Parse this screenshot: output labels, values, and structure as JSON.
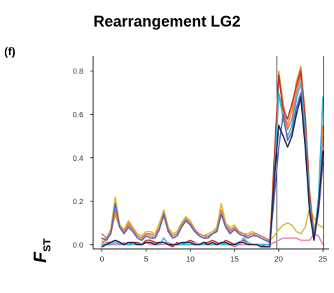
{
  "title": "Rearrangement LG2",
  "panel_label": "(f)",
  "ylabel": {
    "main": "F",
    "sub": "ST"
  },
  "chart_data": {
    "type": "line",
    "title": "Rearrangement LG2",
    "xlabel": "",
    "ylabel": "FST",
    "xlim": [
      -1,
      25.7
    ],
    "ylim": [
      -0.02,
      0.87
    ],
    "xticks": [
      0,
      5,
      10,
      15,
      20,
      25
    ],
    "yticks": [
      0.0,
      0.2,
      0.4,
      0.6,
      0.8
    ],
    "yticklabels": [
      "0.0",
      "0.2",
      "0.4",
      "0.6",
      "0.8"
    ],
    "vlines": [
      19.8,
      25.1
    ],
    "x": [
      0,
      0.5,
      1,
      1.5,
      2,
      2.5,
      3,
      3.5,
      4,
      4.5,
      5,
      5.5,
      6,
      6.5,
      7,
      7.5,
      8,
      8.5,
      9,
      9.5,
      10,
      10.5,
      11,
      11.5,
      12,
      12.5,
      13,
      13.5,
      14,
      14.5,
      15,
      15.5,
      16,
      16.5,
      17,
      17.5,
      18,
      18.5,
      19,
      19.5,
      20,
      20.5,
      21,
      21.5,
      22,
      22.5,
      23,
      23.5,
      24,
      24.5,
      25
    ],
    "series": [
      {
        "color": "#d7c03a",
        "values": [
          0.02,
          0.03,
          0.07,
          0.22,
          0.09,
          0.07,
          0.11,
          0.08,
          0.05,
          0.04,
          0.06,
          0.06,
          0.05,
          0.1,
          0.16,
          0.08,
          0.05,
          0.06,
          0.1,
          0.13,
          0.11,
          0.07,
          0.05,
          0.04,
          0.05,
          0.06,
          0.08,
          0.19,
          0.1,
          0.08,
          0.09,
          0.06,
          0.05,
          0.05,
          0.06,
          0.05,
          0.04,
          0.03,
          0.02,
          0.04,
          0.07,
          0.09,
          0.1,
          0.09,
          0.06,
          0.05,
          0.08,
          0.17,
          0.12,
          0.09,
          0.08
        ]
      },
      {
        "color": "#e7883c",
        "values": [
          0.01,
          0.02,
          0.05,
          0.14,
          0.08,
          0.06,
          0.1,
          0.07,
          0.04,
          0.03,
          0.05,
          0.04,
          0.03,
          0.08,
          0.13,
          0.06,
          0.04,
          0.05,
          0.08,
          0.11,
          0.1,
          0.06,
          0.04,
          0.03,
          0.04,
          0.05,
          0.07,
          0.16,
          0.09,
          0.07,
          0.08,
          0.05,
          0.04,
          0.04,
          0.05,
          0.04,
          0.03,
          0.02,
          0.02,
          0.35,
          0.8,
          0.65,
          0.55,
          0.62,
          0.75,
          0.82,
          0.6,
          0.25,
          0.05,
          0.2,
          0.55
        ]
      },
      {
        "color": "#e07870",
        "values": [
          0.05,
          0.03,
          0.06,
          0.16,
          0.09,
          0.06,
          0.09,
          0.07,
          0.04,
          0.03,
          0.05,
          0.05,
          0.04,
          0.08,
          0.15,
          0.07,
          0.04,
          0.05,
          0.09,
          0.12,
          0.1,
          0.07,
          0.05,
          0.04,
          0.04,
          0.05,
          0.06,
          0.15,
          0.09,
          0.06,
          0.08,
          0.06,
          0.05,
          0.04,
          0.05,
          0.05,
          0.04,
          0.03,
          0.02,
          0.3,
          0.7,
          0.62,
          0.53,
          0.58,
          0.7,
          0.78,
          0.55,
          0.2,
          0.04,
          0.18,
          0.5
        ]
      },
      {
        "color": "#c03b25",
        "values": [
          0.0,
          0.01,
          0.01,
          0.02,
          0.01,
          0.0,
          0.0,
          0.01,
          0.01,
          0.0,
          0.02,
          0.02,
          0.01,
          0.01,
          0.01,
          0.0,
          -0.01,
          0.01,
          0.0,
          0.01,
          0.02,
          0.01,
          0.0,
          0.01,
          0.01,
          0.02,
          0.01,
          0.0,
          0.02,
          0.01,
          0.0,
          0.01,
          0.02,
          0.01,
          0.0,
          0.0,
          0.0,
          -0.01,
          -0.01,
          0.4,
          0.78,
          0.62,
          0.58,
          0.65,
          0.73,
          0.8,
          0.58,
          0.22,
          0.03,
          0.2,
          0.42
        ]
      },
      {
        "color": "#e984b2",
        "values": [
          0.0,
          0.01,
          0.0,
          0.0,
          0.0,
          0.01,
          0.0,
          0.0,
          0.0,
          0.0,
          0.01,
          0.0,
          0.0,
          0.0,
          0.0,
          0.01,
          0.0,
          0.0,
          0.0,
          0.0,
          0.0,
          0.01,
          0.0,
          0.0,
          0.0,
          0.0,
          0.0,
          0.01,
          0.0,
          0.0,
          -0.01,
          0.0,
          0.0,
          0.0,
          0.0,
          0.0,
          0.0,
          0.0,
          0.0,
          0.01,
          0.02,
          0.03,
          0.03,
          0.03,
          0.03,
          0.02,
          0.02,
          0.02,
          0.05,
          0.04,
          0.0
        ]
      },
      {
        "color": "#3db4d6",
        "values": [
          0.0,
          0.0,
          0.0,
          0.01,
          0.0,
          0.0,
          0.0,
          0.0,
          0.0,
          0.0,
          0.01,
          0.01,
          0.0,
          0.0,
          0.03,
          0.0,
          0.0,
          0.0,
          0.0,
          0.0,
          0.0,
          0.0,
          0.0,
          0.0,
          0.0,
          0.0,
          0.0,
          0.0,
          0.0,
          0.0,
          0.0,
          0.0,
          0.03,
          0.01,
          0.0,
          0.0,
          0.0,
          0.0,
          0.0,
          0.3,
          0.7,
          0.58,
          0.5,
          0.55,
          0.67,
          0.75,
          0.52,
          0.2,
          0.02,
          0.22,
          0.68
        ]
      },
      {
        "color": "#5b6bb4",
        "values": [
          0.03,
          0.02,
          0.05,
          0.19,
          0.08,
          0.05,
          0.08,
          0.06,
          0.03,
          0.02,
          0.04,
          0.03,
          0.03,
          0.07,
          0.14,
          0.06,
          0.03,
          0.04,
          0.08,
          0.11,
          0.09,
          0.06,
          0.04,
          0.03,
          0.03,
          0.05,
          0.06,
          0.14,
          0.08,
          0.05,
          0.07,
          0.05,
          0.04,
          0.03,
          0.04,
          0.04,
          0.03,
          0.02,
          0.01,
          0.22,
          0.45,
          0.6,
          0.48,
          0.52,
          0.63,
          0.7,
          0.48,
          0.18,
          0.03,
          0.15,
          0.38
        ]
      },
      {
        "color": "#2a2a55",
        "values": [
          -0.01,
          0.0,
          0.01,
          0.02,
          0.01,
          0.0,
          0.01,
          0.01,
          0.0,
          0.0,
          0.01,
          0.01,
          0.0,
          0.01,
          0.01,
          0.0,
          0.0,
          0.0,
          0.01,
          0.01,
          0.01,
          0.0,
          0.0,
          0.01,
          0.0,
          0.01,
          0.0,
          0.01,
          0.01,
          0.0,
          0.0,
          0.01,
          0.01,
          0.0,
          0.0,
          0.0,
          -0.01,
          -0.01,
          -0.01,
          0.3,
          0.55,
          0.5,
          0.45,
          0.5,
          0.6,
          0.68,
          0.45,
          0.15,
          0.02,
          0.18,
          0.43
        ]
      }
    ]
  }
}
